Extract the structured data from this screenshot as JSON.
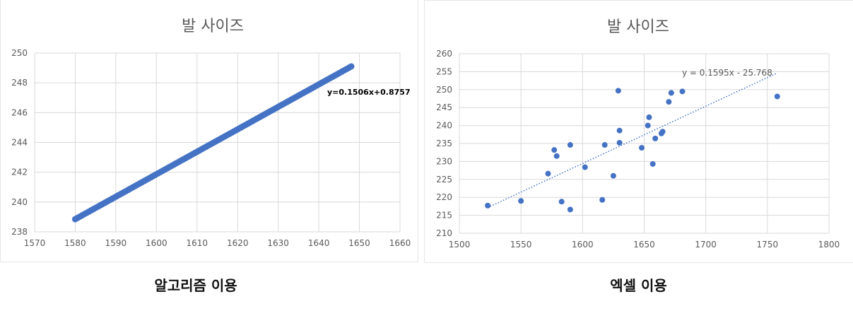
{
  "chart_data": [
    {
      "type": "scatter",
      "title": "발 사이즈",
      "xlabel": "",
      "ylabel": "",
      "xlim": [
        1570,
        1660
      ],
      "ylim": [
        238,
        250
      ],
      "xticks": [
        1570,
        1580,
        1590,
        1600,
        1610,
        1620,
        1630,
        1640,
        1650,
        1660
      ],
      "yticks": [
        238,
        240,
        242,
        244,
        246,
        248,
        250
      ],
      "grid": true,
      "trendline": {
        "slope": 0.1506,
        "intercept": 0.8757,
        "label": "y=0.1506x+0.8757"
      },
      "series": [
        {
          "color": "#4472c4",
          "x_start": 1580,
          "x_end": 1648,
          "y_start": 238.85,
          "y_end": 249.1
        }
      ],
      "caption": "알고리즘 이용"
    },
    {
      "type": "scatter",
      "title": "발 사이즈",
      "xlabel": "",
      "ylabel": "",
      "xlim": [
        1500,
        1800
      ],
      "ylim": [
        210,
        260
      ],
      "xticks": [
        1500,
        1550,
        1600,
        1650,
        1700,
        1750,
        1800
      ],
      "yticks": [
        210,
        215,
        220,
        225,
        230,
        235,
        240,
        245,
        250,
        255,
        260
      ],
      "grid": true,
      "trendline": {
        "slope": 0.1595,
        "intercept": -25.768,
        "label": "y = 0.1595x - 25.768",
        "x_range": [
          1523,
          1758
        ],
        "style": "dotted"
      },
      "series": [
        {
          "color": "#4472c4",
          "points": [
            [
              1523,
              217.7
            ],
            [
              1550,
              219.0
            ],
            [
              1572,
              226.6
            ],
            [
              1577,
              233.2
            ],
            [
              1579,
              231.5
            ],
            [
              1583,
              218.8
            ],
            [
              1590,
              216.6
            ],
            [
              1590,
              234.6
            ],
            [
              1602,
              228.4
            ],
            [
              1616,
              219.3
            ],
            [
              1618,
              234.6
            ],
            [
              1625,
              226.0
            ],
            [
              1629,
              249.7
            ],
            [
              1630,
              235.2
            ],
            [
              1630,
              238.6
            ],
            [
              1648,
              233.8
            ],
            [
              1653,
              240.0
            ],
            [
              1654,
              242.3
            ],
            [
              1657,
              229.3
            ],
            [
              1659,
              236.4
            ],
            [
              1664,
              237.8
            ],
            [
              1665,
              238.3
            ],
            [
              1670,
              246.6
            ],
            [
              1672,
              249.1
            ],
            [
              1681,
              249.5
            ],
            [
              1758,
              248.1
            ]
          ]
        }
      ],
      "caption": "엑셀 이용"
    }
  ]
}
